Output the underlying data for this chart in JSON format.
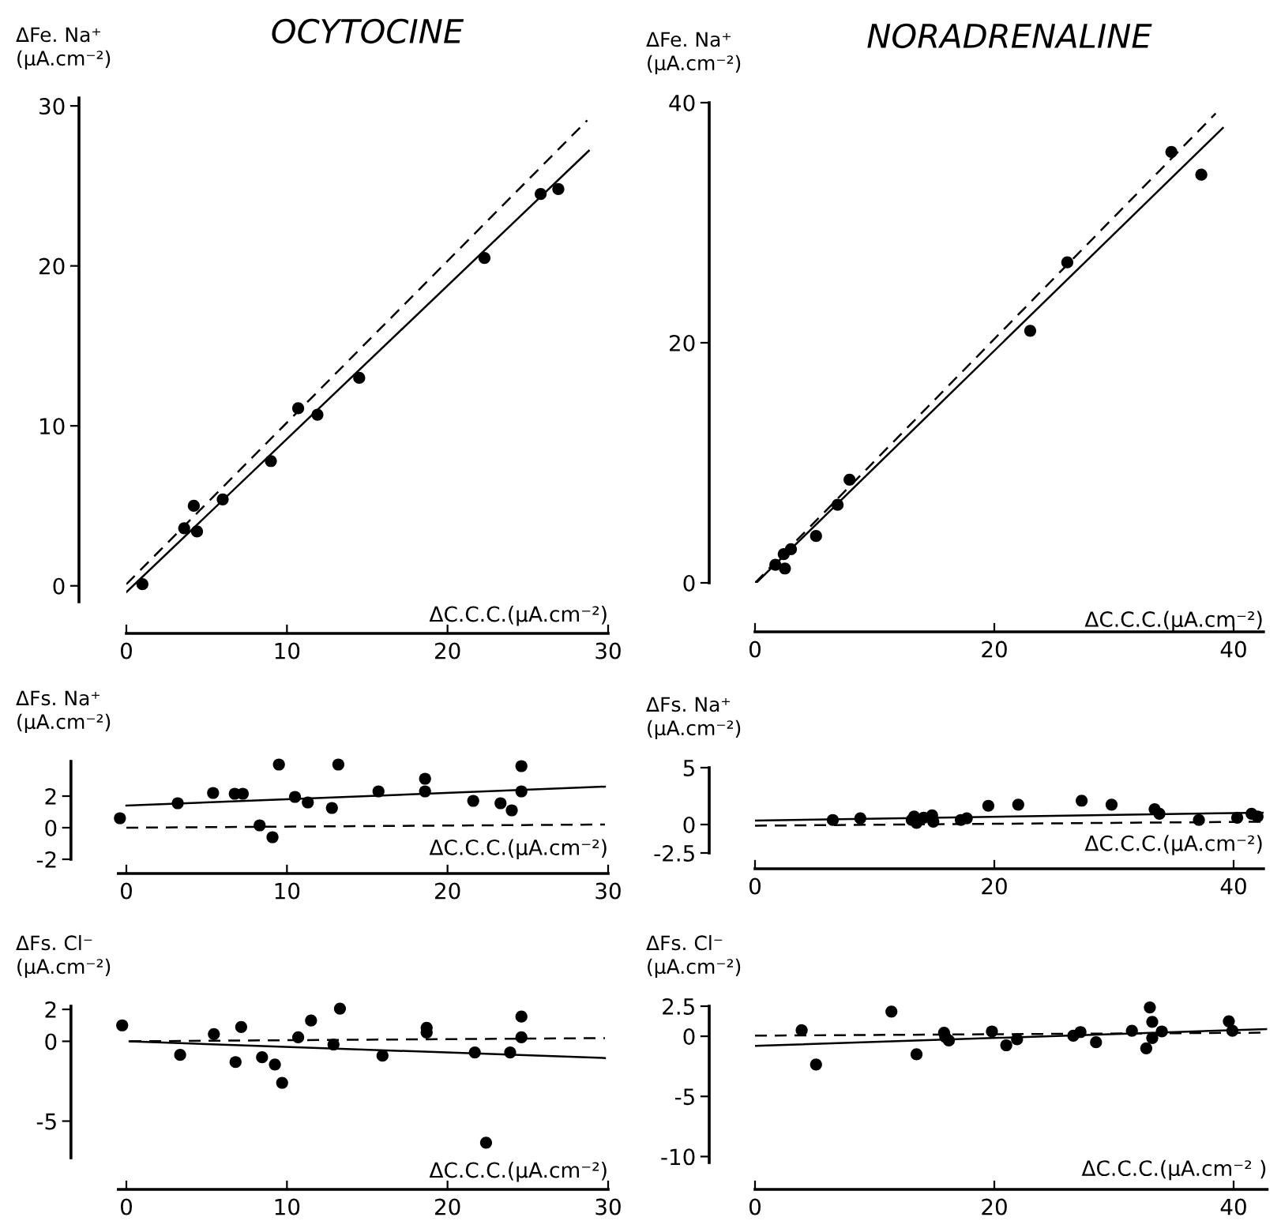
{
  "chart_data": [
    {
      "type": "scatter",
      "title": "OCYTOCINE",
      "ylabel": "ΔFe. Na⁺\n(μA.cm⁻²)",
      "xlabel": "ΔC.C.C.(μA.cm⁻²)",
      "xlim": [
        0,
        30
      ],
      "ylim": [
        -1,
        30.5
      ],
      "xticks": [
        0,
        10,
        20,
        30
      ],
      "yticks": [
        0,
        10,
        20,
        30
      ],
      "grid": false,
      "legend": false,
      "series": [
        {
          "type": "scatter",
          "marker": "circle",
          "color": "#000000",
          "x": [
            1.0,
            3.6,
            4.2,
            4.4,
            6.0,
            9.0,
            10.7,
            11.9,
            14.5,
            22.3,
            25.8,
            26.9
          ],
          "values": [
            0.1,
            3.6,
            5.0,
            3.4,
            5.4,
            7.8,
            11.1,
            10.7,
            13.0,
            20.5,
            24.5,
            24.8
          ]
        },
        {
          "type": "line",
          "line_style": "dashed",
          "color": "#000000",
          "x": [
            0,
            28.7
          ],
          "values": [
            0.1,
            29.1
          ]
        },
        {
          "type": "line",
          "line_style": "solid",
          "color": "#000000",
          "x": [
            0,
            28.8
          ],
          "values": [
            -0.4,
            27.2
          ]
        }
      ]
    },
    {
      "type": "scatter",
      "title": "NORADRENALINE",
      "ylabel": "ΔFe. Na⁺\n(μA.cm⁻²)",
      "xlabel": "ΔC.C.C.(μA.cm⁻²)",
      "xlim": [
        0,
        42.5
      ],
      "ylim": [
        0,
        40
      ],
      "xticks": [
        0,
        20,
        40
      ],
      "yticks": [
        0,
        20,
        40
      ],
      "grid": false,
      "legend": false,
      "series": [
        {
          "type": "scatter",
          "marker": "circle",
          "color": "#000000",
          "x": [
            1.7,
            2.4,
            2.5,
            3.0,
            5.1,
            6.9,
            7.9,
            23.0,
            26.1,
            34.8,
            37.3
          ],
          "values": [
            1.5,
            2.4,
            1.2,
            2.8,
            3.9,
            6.5,
            8.6,
            21.0,
            26.7,
            35.9,
            34.0
          ]
        },
        {
          "type": "line",
          "line_style": "dashed",
          "color": "#000000",
          "x": [
            0,
            38.5
          ],
          "values": [
            0,
            39.1
          ]
        },
        {
          "type": "line",
          "line_style": "solid",
          "color": "#000000",
          "x": [
            0.1,
            39.1
          ],
          "values": [
            0,
            37.9
          ]
        }
      ]
    },
    {
      "type": "scatter",
      "ylabel": "ΔFs. Na⁺\n(μA.cm⁻²)",
      "xlabel": "ΔC.C.C.(μA.cm⁻²)",
      "xlim": [
        -0.5,
        30
      ],
      "ylim": [
        -2,
        4.2
      ],
      "xticks": [
        0,
        10,
        20,
        30
      ],
      "yticks": [
        -2,
        0,
        2
      ],
      "grid": false,
      "legend": false,
      "series": [
        {
          "type": "scatter",
          "marker": "circle",
          "color": "#000000",
          "x": [
            -0.4,
            3.2,
            5.4,
            6.75,
            7.25,
            8.3,
            9.1,
            9.5,
            10.5,
            11.3,
            12.8,
            13.2,
            15.7,
            18.6,
            18.6,
            21.6,
            23.3,
            24.0,
            24.6,
            24.6
          ],
          "values": [
            0.6,
            1.55,
            2.2,
            2.15,
            2.15,
            0.15,
            -0.6,
            4.0,
            1.95,
            1.6,
            1.25,
            4.0,
            2.3,
            3.1,
            2.3,
            1.7,
            1.55,
            1.1,
            3.9,
            2.3
          ]
        },
        {
          "type": "line",
          "line_style": "solid",
          "color": "#000000",
          "x": [
            0,
            29.8
          ],
          "values": [
            1.4,
            2.6
          ]
        },
        {
          "type": "line",
          "line_style": "dashed",
          "color": "#000000",
          "x": [
            0,
            29.8
          ],
          "values": [
            0.0,
            0.2
          ]
        }
      ]
    },
    {
      "type": "scatter",
      "ylabel": "ΔFs. Na⁺\n(μA.cm⁻²)",
      "xlabel": "ΔC.C.C.(μA.cm⁻²)",
      "xlim": [
        0,
        42.5
      ],
      "ylim": [
        -2.5,
        5
      ],
      "xticks": [
        0,
        20,
        40
      ],
      "yticks": [
        -2.5,
        0,
        5
      ],
      "grid": false,
      "legend": false,
      "series": [
        {
          "type": "scatter",
          "marker": "circle",
          "color": "#000000",
          "x": [
            6.5,
            8.8,
            13.1,
            13.3,
            13.5,
            14.1,
            14.8,
            14.9,
            17.2,
            17.7,
            19.5,
            22.0,
            27.3,
            29.8,
            33.4,
            33.8,
            37.1,
            40.3,
            41.5,
            42.0
          ],
          "values": [
            0.4,
            0.55,
            0.4,
            0.7,
            0.15,
            0.6,
            0.8,
            0.25,
            0.4,
            0.55,
            1.65,
            1.75,
            2.1,
            1.75,
            1.35,
            0.95,
            0.4,
            0.6,
            0.95,
            0.7
          ]
        },
        {
          "type": "line",
          "line_style": "solid",
          "color": "#000000",
          "x": [
            0,
            42.5
          ],
          "values": [
            0.35,
            1.05
          ]
        },
        {
          "type": "line",
          "line_style": "dashed",
          "color": "#000000",
          "x": [
            0,
            42.5
          ],
          "values": [
            -0.1,
            0.25
          ]
        }
      ]
    },
    {
      "type": "scatter",
      "ylabel": "ΔFs. Cl⁻\n(μA.cm⁻²)",
      "xlabel": "ΔC.C.C.(μA.cm⁻²)",
      "xlim": [
        -0.5,
        30
      ],
      "ylim": [
        -7.3,
        2.2
      ],
      "xticks": [
        0,
        10,
        20,
        30
      ],
      "yticks": [
        -5,
        0,
        2
      ],
      "grid": false,
      "legend": false,
      "series": [
        {
          "type": "scatter",
          "marker": "circle",
          "color": "#000000",
          "x": [
            -0.26,
            3.35,
            5.45,
            6.8,
            7.15,
            8.45,
            9.25,
            9.7,
            10.7,
            11.5,
            12.9,
            13.3,
            15.95,
            18.7,
            18.7,
            21.7,
            22.4,
            23.9,
            24.6,
            24.6
          ],
          "values": [
            1.0,
            -0.85,
            0.45,
            -1.3,
            0.9,
            -1.0,
            -1.45,
            -2.6,
            0.25,
            1.3,
            -0.2,
            2.05,
            -0.9,
            0.85,
            0.55,
            -0.7,
            -6.35,
            -0.7,
            1.55,
            0.25
          ]
        },
        {
          "type": "line",
          "line_style": "solid",
          "color": "#000000",
          "x": [
            0.2,
            29.8
          ],
          "values": [
            0,
            -1.05
          ]
        },
        {
          "type": "line",
          "line_style": "dashed",
          "color": "#000000",
          "x": [
            0.2,
            29.8
          ],
          "values": [
            0,
            0.2
          ]
        }
      ]
    },
    {
      "type": "scatter",
      "ylabel": "ΔFs. Cl⁻\n(μA.cm⁻²)",
      "xlabel": "ΔC.C.C.(μA.cm⁻² )",
      "xlim": [
        0,
        42.8
      ],
      "ylim": [
        -10.5,
        2.5
      ],
      "xticks": [
        0,
        20,
        40
      ],
      "yticks": [
        -10,
        -5,
        0,
        2.5
      ],
      "grid": false,
      "legend": false,
      "series": [
        {
          "type": "scatter",
          "marker": "circle",
          "color": "#000000",
          "x": [
            3.9,
            5.1,
            11.4,
            13.5,
            15.8,
            15.9,
            16.2,
            19.8,
            21.0,
            21.9,
            26.6,
            27.2,
            28.5,
            31.5,
            32.7,
            33.0,
            33.2,
            33.2,
            34.0,
            39.6,
            39.9
          ],
          "values": [
            0.5,
            -2.35,
            2.05,
            -1.5,
            0.3,
            -0.05,
            -0.35,
            0.4,
            -0.75,
            -0.25,
            0.05,
            0.35,
            -0.5,
            0.45,
            -1.0,
            2.4,
            1.2,
            -0.15,
            0.4,
            1.25,
            0.45
          ]
        },
        {
          "type": "line",
          "line_style": "solid",
          "color": "#000000",
          "x": [
            0,
            42.8
          ],
          "values": [
            -0.8,
            0.6
          ]
        },
        {
          "type": "line",
          "line_style": "dashed",
          "color": "#000000",
          "x": [
            0,
            42.8
          ],
          "values": [
            0.05,
            0.3
          ]
        }
      ]
    }
  ]
}
